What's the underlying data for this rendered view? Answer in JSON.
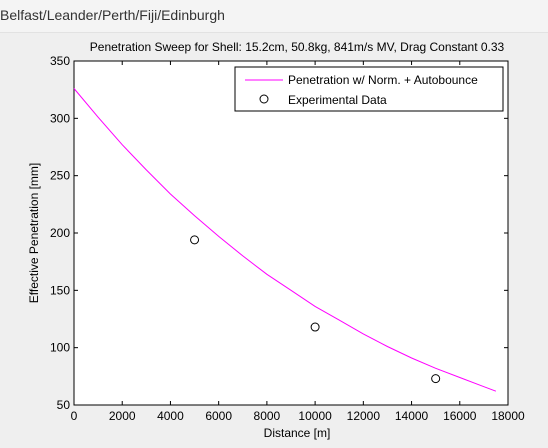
{
  "header": {
    "title": "Belfast/Leander/Perth/Fiji/Edinburgh"
  },
  "chart_data": {
    "type": "line",
    "title": "Penetration Sweep for Shell: 15.2cm, 50.8kg, 841m/s MV, Drag Constant 0.33",
    "xlabel": "Distance [m]",
    "ylabel": "Effective Penetration [mm]",
    "xlim": [
      0,
      18000
    ],
    "ylim": [
      50,
      350
    ],
    "xticks": [
      0,
      2000,
      4000,
      6000,
      8000,
      10000,
      12000,
      14000,
      16000,
      18000
    ],
    "yticks": [
      50,
      100,
      150,
      200,
      250,
      300,
      350
    ],
    "grid": false,
    "legend_position": "top-right",
    "colors": {
      "line": "#ff00ff",
      "marker": "#000000",
      "axes_bg": "#ffffff",
      "figure_bg": "#efefef"
    },
    "series": [
      {
        "name": "Penetration w/ Norm. + Autobounce",
        "kind": "line",
        "x": [
          0,
          1000,
          2000,
          3000,
          4000,
          5000,
          6000,
          7000,
          8000,
          9000,
          10000,
          11000,
          12000,
          13000,
          14000,
          15000,
          16000,
          17000,
          17500
        ],
        "y": [
          326,
          301,
          277,
          255,
          234,
          215,
          197,
          180,
          164,
          150,
          136,
          124,
          112,
          101,
          91,
          82,
          74,
          66,
          62
        ]
      },
      {
        "name": "Experimental Data",
        "kind": "scatter",
        "marker": "circle",
        "x": [
          5000,
          10000,
          15000
        ],
        "y": [
          194,
          118,
          73
        ]
      }
    ]
  }
}
